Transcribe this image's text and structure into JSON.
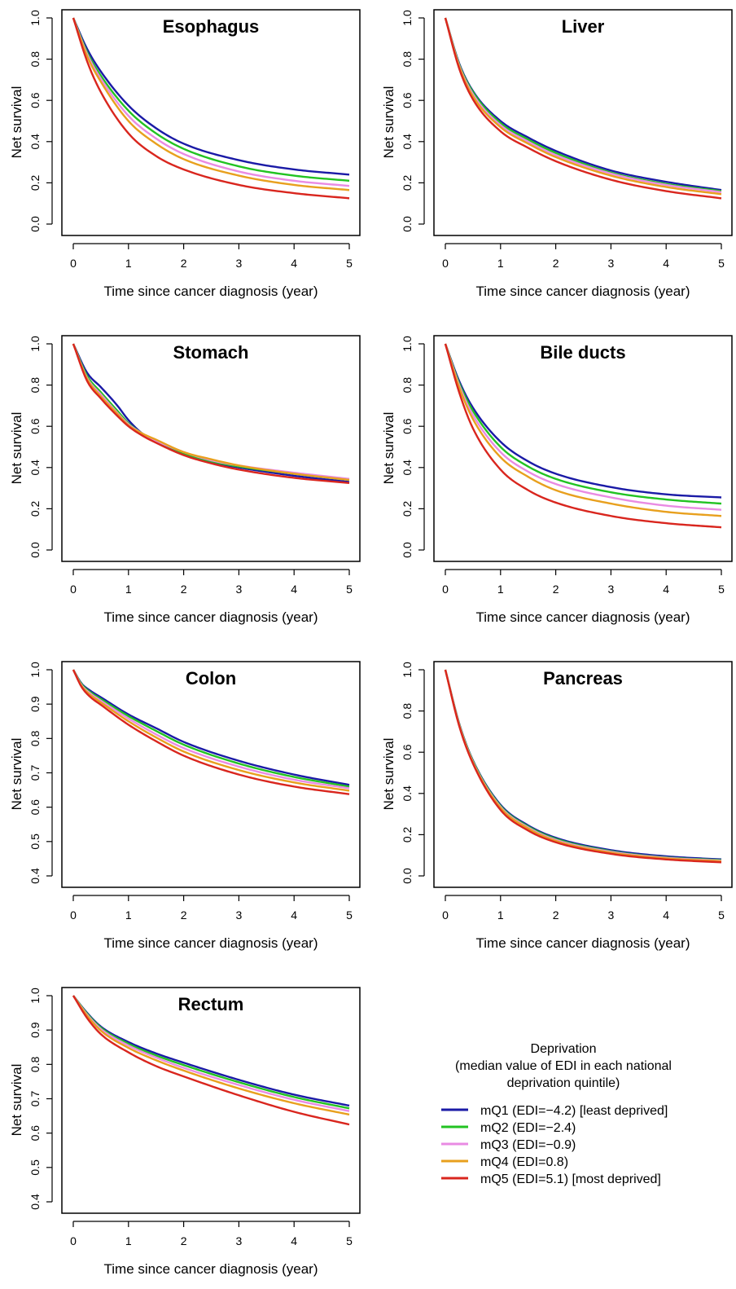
{
  "chart_data": [
    {
      "type": "line",
      "title": "Esophagus",
      "xlabel": "Time since cancer diagnosis (year)",
      "ylabel": "Net survival",
      "xlim": [
        0,
        5
      ],
      "ylim": [
        0,
        1
      ],
      "xticks": [
        "0",
        "1",
        "2",
        "3",
        "4",
        "5"
      ],
      "yticks": [
        "0.0",
        "0.2",
        "0.4",
        "0.6",
        "0.8",
        "1.0"
      ],
      "x": [
        0,
        0.25,
        0.5,
        1,
        1.5,
        2,
        3,
        4,
        5
      ],
      "series": [
        {
          "name": "mQ1",
          "values": [
            1.0,
            0.85,
            0.74,
            0.575,
            0.465,
            0.39,
            0.31,
            0.265,
            0.24
          ]
        },
        {
          "name": "mQ2",
          "values": [
            1.0,
            0.835,
            0.72,
            0.55,
            0.44,
            0.365,
            0.28,
            0.235,
            0.21
          ]
        },
        {
          "name": "mQ3",
          "values": [
            1.0,
            0.825,
            0.705,
            0.525,
            0.415,
            0.34,
            0.255,
            0.21,
            0.185
          ]
        },
        {
          "name": "mQ4",
          "values": [
            1.0,
            0.815,
            0.69,
            0.5,
            0.39,
            0.315,
            0.235,
            0.19,
            0.165
          ]
        },
        {
          "name": "mQ5",
          "values": [
            1.0,
            0.79,
            0.64,
            0.44,
            0.33,
            0.265,
            0.19,
            0.15,
            0.125
          ]
        }
      ]
    },
    {
      "type": "line",
      "title": "Liver",
      "xlabel": "Time since cancer diagnosis (year)",
      "ylabel": "Net survival",
      "xlim": [
        0,
        5
      ],
      "ylim": [
        0,
        1
      ],
      "xticks": [
        "0",
        "1",
        "2",
        "3",
        "4",
        "5"
      ],
      "yticks": [
        "0.0",
        "0.2",
        "0.4",
        "0.6",
        "0.8",
        "1.0"
      ],
      "x": [
        0,
        0.25,
        0.5,
        1,
        1.5,
        2,
        3,
        4,
        5
      ],
      "series": [
        {
          "name": "mQ1",
          "values": [
            1.0,
            0.78,
            0.645,
            0.5,
            0.42,
            0.355,
            0.26,
            0.205,
            0.165
          ]
        },
        {
          "name": "mQ2",
          "values": [
            1.0,
            0.775,
            0.64,
            0.49,
            0.41,
            0.345,
            0.25,
            0.195,
            0.16
          ]
        },
        {
          "name": "mQ3",
          "values": [
            1.0,
            0.77,
            0.63,
            0.48,
            0.4,
            0.335,
            0.245,
            0.19,
            0.155
          ]
        },
        {
          "name": "mQ4",
          "values": [
            1.0,
            0.765,
            0.62,
            0.47,
            0.39,
            0.325,
            0.235,
            0.18,
            0.145
          ]
        },
        {
          "name": "mQ5",
          "values": [
            1.0,
            0.755,
            0.605,
            0.45,
            0.37,
            0.305,
            0.215,
            0.16,
            0.125
          ]
        }
      ]
    },
    {
      "type": "line",
      "title": "Stomach",
      "xlabel": "Time since cancer diagnosis (year)",
      "ylabel": "Net survival",
      "xlim": [
        0,
        5
      ],
      "ylim": [
        0,
        1
      ],
      "xticks": [
        "0",
        "1",
        "2",
        "3",
        "4",
        "5"
      ],
      "yticks": [
        "0.0",
        "0.2",
        "0.4",
        "0.6",
        "0.8",
        "1.0"
      ],
      "x": [
        0,
        0.25,
        0.5,
        0.8,
        1,
        1.25,
        1.5,
        2,
        2.5,
        3,
        4,
        5
      ],
      "series": [
        {
          "name": "mQ1",
          "values": [
            1.0,
            0.86,
            0.79,
            0.7,
            0.63,
            0.565,
            0.525,
            0.465,
            0.425,
            0.4,
            0.36,
            0.33
          ]
        },
        {
          "name": "mQ2",
          "values": [
            1.0,
            0.845,
            0.765,
            0.675,
            0.615,
            0.565,
            0.53,
            0.47,
            0.43,
            0.405,
            0.37,
            0.34
          ]
        },
        {
          "name": "mQ3",
          "values": [
            1.0,
            0.835,
            0.755,
            0.665,
            0.61,
            0.565,
            0.53,
            0.475,
            0.435,
            0.41,
            0.375,
            0.345
          ]
        },
        {
          "name": "mQ4",
          "values": [
            1.0,
            0.83,
            0.745,
            0.66,
            0.605,
            0.565,
            0.535,
            0.475,
            0.44,
            0.41,
            0.37,
            0.34
          ]
        },
        {
          "name": "mQ5",
          "values": [
            1.0,
            0.82,
            0.735,
            0.65,
            0.6,
            0.555,
            0.52,
            0.46,
            0.42,
            0.39,
            0.35,
            0.325
          ]
        }
      ]
    },
    {
      "type": "line",
      "title": "Bile ducts",
      "xlabel": "Time since cancer diagnosis (year)",
      "ylabel": "Net survival",
      "xlim": [
        0,
        5
      ],
      "ylim": [
        0,
        1
      ],
      "xticks": [
        "0",
        "1",
        "2",
        "3",
        "4",
        "5"
      ],
      "yticks": [
        "0.0",
        "0.2",
        "0.4",
        "0.6",
        "0.8",
        "1.0"
      ],
      "x": [
        0,
        0.25,
        0.5,
        1,
        1.5,
        2,
        3,
        4,
        5
      ],
      "series": [
        {
          "name": "mQ1",
          "values": [
            1.0,
            0.82,
            0.69,
            0.525,
            0.43,
            0.37,
            0.305,
            0.27,
            0.255
          ]
        },
        {
          "name": "mQ2",
          "values": [
            1.0,
            0.81,
            0.675,
            0.5,
            0.405,
            0.345,
            0.28,
            0.245,
            0.225
          ]
        },
        {
          "name": "mQ3",
          "values": [
            1.0,
            0.8,
            0.655,
            0.475,
            0.38,
            0.32,
            0.255,
            0.215,
            0.195
          ]
        },
        {
          "name": "mQ4",
          "values": [
            1.0,
            0.79,
            0.635,
            0.45,
            0.355,
            0.29,
            0.225,
            0.185,
            0.165
          ]
        },
        {
          "name": "mQ5",
          "values": [
            1.0,
            0.765,
            0.59,
            0.39,
            0.29,
            0.23,
            0.165,
            0.13,
            0.11
          ]
        }
      ]
    },
    {
      "type": "line",
      "title": "Colon",
      "xlabel": "Time since cancer diagnosis (year)",
      "ylabel": "Net survival",
      "xlim": [
        0,
        5
      ],
      "ylim": [
        0.4,
        1
      ],
      "xticks": [
        "0",
        "1",
        "2",
        "3",
        "4",
        "5"
      ],
      "yticks": [
        "0.4",
        "0.5",
        "0.6",
        "0.7",
        "0.8",
        "0.9",
        "1.0"
      ],
      "x": [
        0,
        0.15,
        0.3,
        0.5,
        1,
        1.5,
        2,
        3,
        4,
        5
      ],
      "series": [
        {
          "name": "mQ1",
          "values": [
            1.0,
            0.96,
            0.94,
            0.92,
            0.87,
            0.83,
            0.79,
            0.735,
            0.695,
            0.665
          ]
        },
        {
          "name": "mQ2",
          "values": [
            1.0,
            0.958,
            0.936,
            0.915,
            0.865,
            0.822,
            0.782,
            0.727,
            0.688,
            0.66
          ]
        },
        {
          "name": "mQ3",
          "values": [
            1.0,
            0.955,
            0.932,
            0.91,
            0.858,
            0.812,
            0.772,
            0.718,
            0.68,
            0.655
          ]
        },
        {
          "name": "mQ4",
          "values": [
            1.0,
            0.953,
            0.928,
            0.905,
            0.85,
            0.803,
            0.762,
            0.708,
            0.672,
            0.648
          ]
        },
        {
          "name": "mQ5",
          "values": [
            1.0,
            0.95,
            0.922,
            0.898,
            0.84,
            0.792,
            0.75,
            0.695,
            0.66,
            0.638
          ]
        }
      ]
    },
    {
      "type": "line",
      "title": "Pancreas",
      "xlabel": "Time since cancer diagnosis (year)",
      "ylabel": "Net survival",
      "xlim": [
        0,
        5
      ],
      "ylim": [
        0,
        1
      ],
      "xticks": [
        "0",
        "1",
        "2",
        "3",
        "4",
        "5"
      ],
      "yticks": [
        "0.0",
        "0.2",
        "0.4",
        "0.6",
        "0.8",
        "1.0"
      ],
      "x": [
        0,
        0.25,
        0.5,
        1,
        1.5,
        2,
        3,
        4,
        5
      ],
      "series": [
        {
          "name": "mQ1",
          "values": [
            1.0,
            0.74,
            0.56,
            0.345,
            0.245,
            0.185,
            0.125,
            0.095,
            0.08
          ]
        },
        {
          "name": "mQ2",
          "values": [
            1.0,
            0.738,
            0.557,
            0.34,
            0.24,
            0.18,
            0.12,
            0.09,
            0.077
          ]
        },
        {
          "name": "mQ3",
          "values": [
            1.0,
            0.735,
            0.553,
            0.335,
            0.235,
            0.175,
            0.117,
            0.088,
            0.074
          ]
        },
        {
          "name": "mQ4",
          "values": [
            1.0,
            0.732,
            0.55,
            0.33,
            0.23,
            0.17,
            0.113,
            0.085,
            0.071
          ]
        },
        {
          "name": "mQ5",
          "values": [
            1.0,
            0.728,
            0.545,
            0.32,
            0.22,
            0.163,
            0.107,
            0.08,
            0.066
          ]
        }
      ]
    },
    {
      "type": "line",
      "title": "Rectum",
      "xlabel": "Time since cancer diagnosis (year)",
      "ylabel": "Net survival",
      "xlim": [
        0,
        5
      ],
      "ylim": [
        0.4,
        1
      ],
      "xticks": [
        "0",
        "1",
        "2",
        "3",
        "4",
        "5"
      ],
      "yticks": [
        "0.4",
        "0.5",
        "0.6",
        "0.7",
        "0.8",
        "0.9",
        "1.0"
      ],
      "x": [
        0,
        0.25,
        0.5,
        1,
        1.5,
        2,
        3,
        4,
        5
      ],
      "series": [
        {
          "name": "mQ1",
          "values": [
            1.0,
            0.95,
            0.91,
            0.865,
            0.832,
            0.805,
            0.755,
            0.712,
            0.68
          ]
        },
        {
          "name": "mQ2",
          "values": [
            1.0,
            0.948,
            0.907,
            0.86,
            0.826,
            0.798,
            0.748,
            0.705,
            0.672
          ]
        },
        {
          "name": "mQ3",
          "values": [
            1.0,
            0.945,
            0.903,
            0.855,
            0.82,
            0.79,
            0.74,
            0.697,
            0.664
          ]
        },
        {
          "name": "mQ4",
          "values": [
            1.0,
            0.942,
            0.898,
            0.848,
            0.812,
            0.782,
            0.73,
            0.687,
            0.654
          ]
        },
        {
          "name": "mQ5",
          "values": [
            1.0,
            0.935,
            0.888,
            0.835,
            0.795,
            0.765,
            0.71,
            0.662,
            0.625
          ]
        }
      ]
    }
  ],
  "series_colors": [
    "#1a1aa6",
    "#22c322",
    "#e98be3",
    "#e8a01e",
    "#d9261e"
  ],
  "legend": {
    "title_lines": [
      "Deprivation",
      "(median value of EDI in each national",
      "deprivation quintile)"
    ],
    "items": [
      {
        "label": "mQ1 (EDI=−4.2) [least deprived]",
        "color": "#1a1aa6"
      },
      {
        "label": "mQ2 (EDI=−2.4)",
        "color": "#22c322"
      },
      {
        "label": "mQ3 (EDI=−0.9)",
        "color": "#e98be3"
      },
      {
        "label": "mQ4 (EDI=0.8)",
        "color": "#e8a01e"
      },
      {
        "label": "mQ5 (EDI=5.1) [most deprived]",
        "color": "#d9261e"
      }
    ]
  }
}
